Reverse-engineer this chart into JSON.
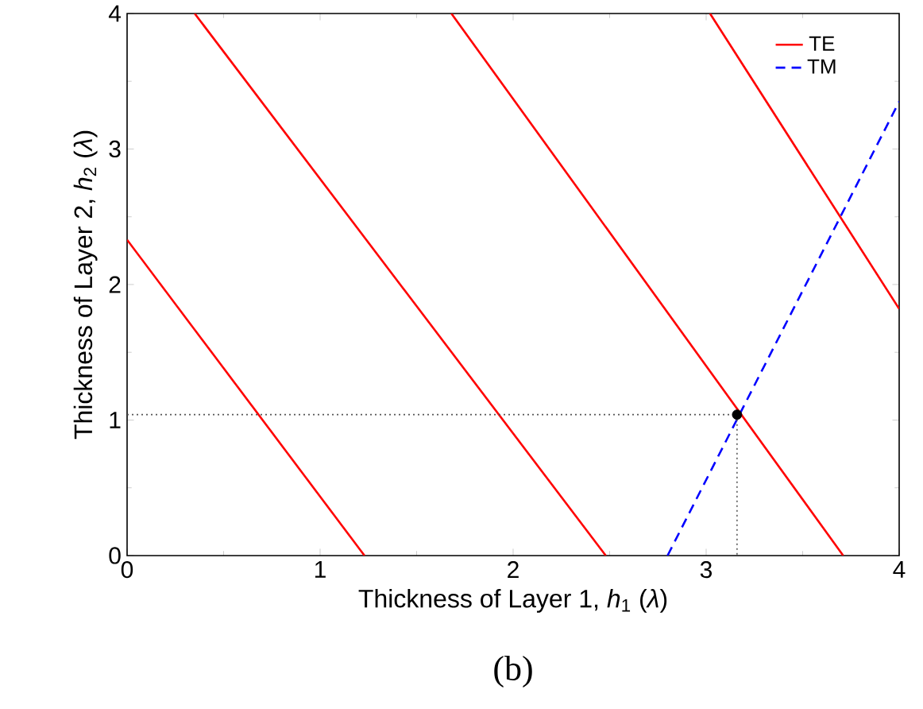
{
  "chart_data": {
    "type": "line",
    "xlabel": "Thickness of Layer 1, *h*$_{1}$ (*λ*)",
    "ylabel": "Thickness of Layer 2, *h*$_{2}$ (*λ*)",
    "xlim": [
      0,
      4
    ],
    "ylim": [
      0,
      4
    ],
    "xticks": [
      0,
      1,
      2,
      3,
      4
    ],
    "yticks": [
      0,
      1,
      2,
      3,
      4
    ],
    "grid": false,
    "legend": "top right",
    "annotations": [
      "(b)"
    ],
    "series": [
      {
        "name": "TE",
        "color": "#ff0000",
        "line_style": "solid",
        "x": [
          0,
          1.23
        ],
        "values": [
          2.33,
          0
        ]
      },
      {
        "name": "TM",
        "color": "#0000ff",
        "line_style": "dashed",
        "x": [
          2.8,
          4
        ],
        "values": [
          0,
          3.35
        ]
      },
      {
        "color": "#ff0000",
        "line_style": "solid",
        "x": [
          0.35,
          2.48
        ],
        "values": [
          4,
          0
        ]
      },
      {
        "color": "#ff0000",
        "line_style": "solid",
        "x": [
          1.68,
          3.71
        ],
        "values": [
          4,
          0
        ]
      },
      {
        "color": "#ff0000",
        "line_style": "solid",
        "x": [
          3.02,
          4
        ],
        "values": [
          4,
          1.82
        ]
      },
      {
        "color": "#555555",
        "line_style": "dotted",
        "x": [
          0,
          3.16,
          3.16
        ],
        "values": [
          1.04,
          1.04,
          0
        ]
      },
      {
        "type": "scatter",
        "color": "#000000",
        "marker": "circle",
        "x": [
          3.16
        ],
        "values": [
          1.04
        ]
      }
    ]
  }
}
